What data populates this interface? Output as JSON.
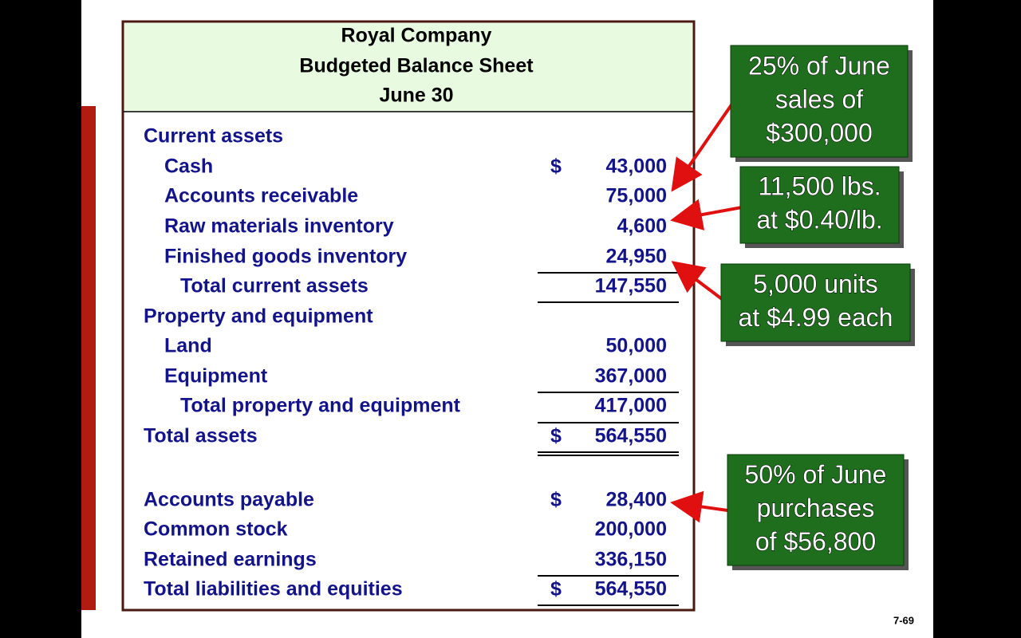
{
  "header": {
    "lines": [
      "Royal Company",
      "Budgeted Balance Sheet",
      "June 30"
    ]
  },
  "rows": [
    {
      "label": "Current assets"
    },
    {
      "label": "Cash",
      "currency": "$",
      "amount": "43,000"
    },
    {
      "label": "Accounts receivable",
      "amount": "75,000"
    },
    {
      "label": "Raw materials inventory",
      "amount": "4,600"
    },
    {
      "label": "Finished goods inventory",
      "amount": "24,950"
    },
    {
      "label": "Total current assets",
      "amount": "147,550"
    },
    {
      "label": "Property and equipment"
    },
    {
      "label": "Land",
      "amount": "50,000"
    },
    {
      "label": "Equipment",
      "amount": "367,000"
    },
    {
      "label": "Total property and equipment",
      "amount": "417,000"
    },
    {
      "label": "Total assets",
      "currency": "$",
      "amount": "564,550"
    },
    {
      "label": "Accounts payable",
      "currency": "$",
      "amount": "28,400"
    },
    {
      "label": "Common stock",
      "amount": "200,000"
    },
    {
      "label": "Retained earnings",
      "amount": "336,150"
    },
    {
      "label": "Total liabilities and equities",
      "currency": "$",
      "amount": "564,550"
    }
  ],
  "callouts": [
    {
      "lines": [
        "25% of June",
        "sales of",
        "$300,000"
      ]
    },
    {
      "lines": [
        "11,500 lbs.",
        "at $0.40/lb."
      ]
    },
    {
      "lines": [
        "5,000 units",
        "at $4.99 each"
      ]
    },
    {
      "lines": [
        "50% of June",
        "purchases",
        "of $56,800"
      ]
    }
  ],
  "page_number": "7-69"
}
